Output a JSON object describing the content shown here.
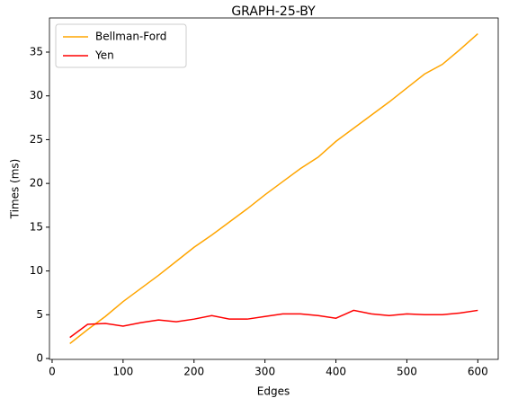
{
  "chart_data": {
    "type": "line",
    "title": "GRAPH-25-BY",
    "xlabel": "Edges",
    "ylabel": "Times (ms)",
    "x": [
      25,
      50,
      75,
      100,
      125,
      150,
      175,
      200,
      225,
      250,
      275,
      300,
      325,
      350,
      375,
      400,
      425,
      450,
      475,
      500,
      525,
      550,
      575,
      600
    ],
    "series": [
      {
        "name": "Bellman-Ford",
        "color": "#ffa500",
        "values": [
          1.7,
          3.3,
          4.8,
          6.5,
          8.0,
          9.5,
          11.1,
          12.7,
          14.1,
          15.6,
          17.1,
          18.7,
          20.2,
          21.7,
          23.0,
          24.8,
          26.3,
          27.8,
          29.3,
          30.9,
          32.5,
          33.6,
          35.3,
          37.1
        ]
      },
      {
        "name": "Yen",
        "color": "#ff0000",
        "values": [
          2.4,
          3.9,
          4.0,
          3.7,
          4.1,
          4.4,
          4.2,
          4.5,
          4.9,
          4.5,
          4.5,
          4.8,
          5.1,
          5.1,
          4.9,
          4.6,
          5.5,
          5.1,
          4.9,
          5.1,
          5.0,
          5.0,
          5.2,
          5.5
        ]
      }
    ],
    "xlim": [
      -3.75,
      628.75
    ],
    "xticks": [
      0,
      100,
      200,
      300,
      400,
      500,
      600
    ],
    "ylim": [
      -0.1,
      38.9
    ],
    "yticks": [
      0,
      5,
      10,
      15,
      20,
      25,
      30,
      35
    ],
    "legend": "upper left",
    "grid": false
  }
}
